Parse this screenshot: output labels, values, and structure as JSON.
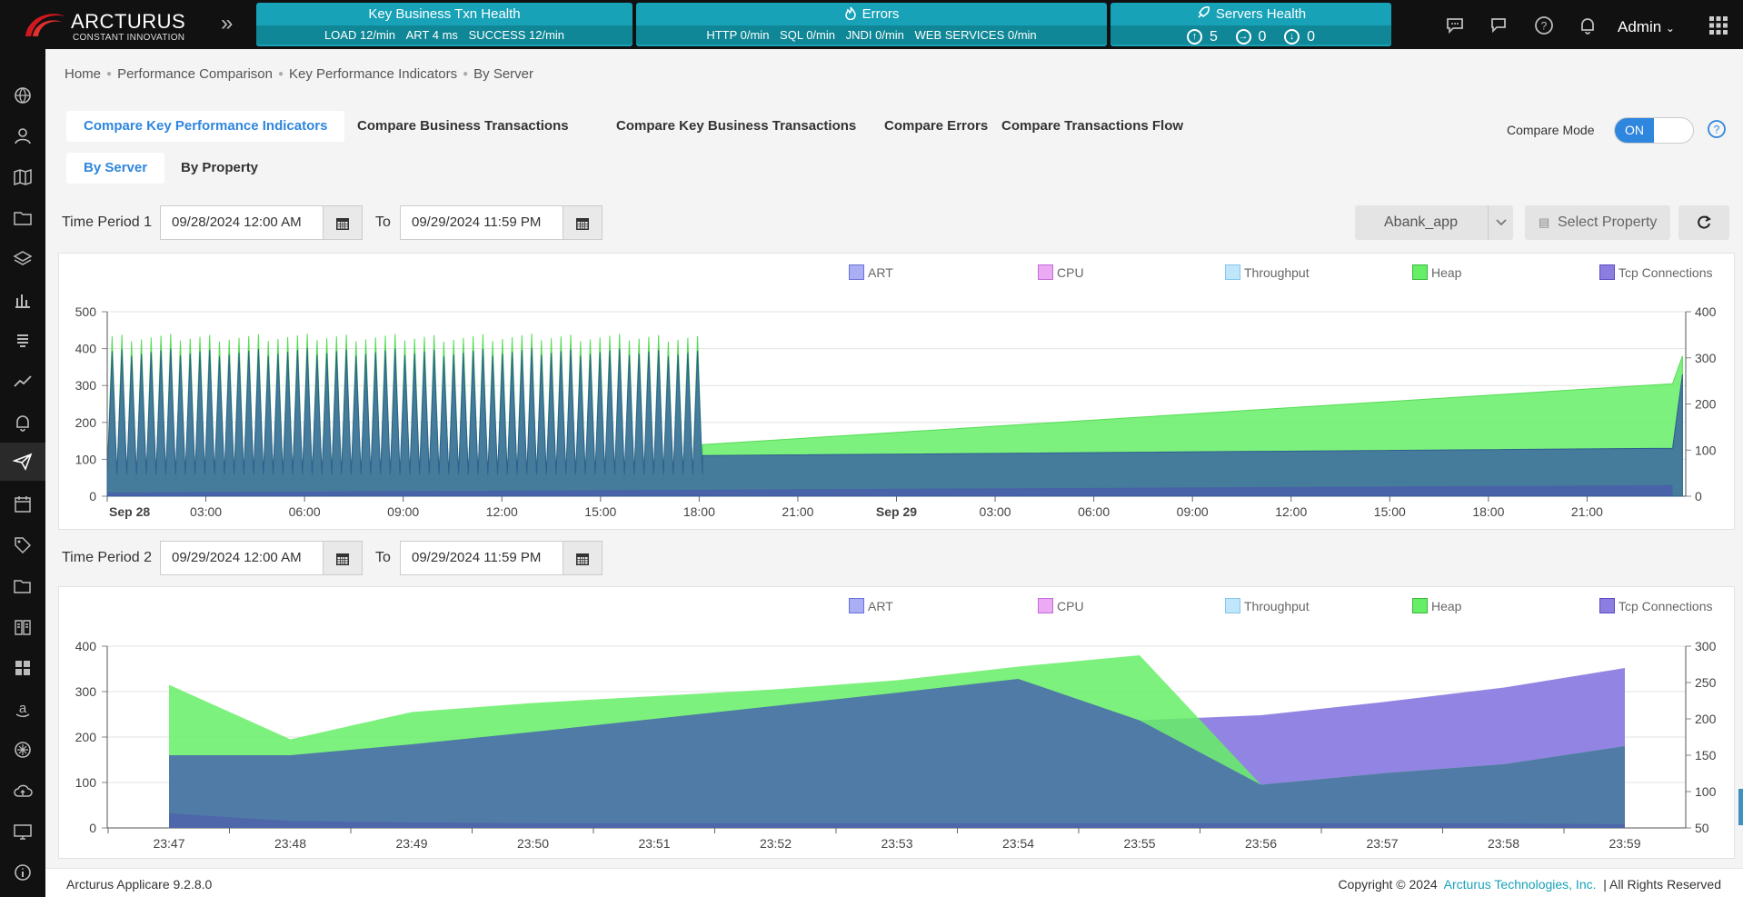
{
  "app": {
    "brand_name": "ARCTURUS",
    "brand_tagline": "CONSTANT INNOVATION",
    "user_name": "Admin",
    "version": "Arcturus Applicare 9.2.8.0",
    "copyright": "Copyright © 2024",
    "company": "Arcturus Technologies, Inc.",
    "rights": "|  All Rights Reserved"
  },
  "health_cards": {
    "key_txn": {
      "title": "Key Business Txn Health",
      "load": "LOAD 12/min",
      "art": "ART 4 ms",
      "success": "SUCCESS 12/min"
    },
    "errors": {
      "title": "Errors",
      "http": "HTTP 0/min",
      "sql": "SQL 0/min",
      "jndi": "JNDI 0/min",
      "ws": "WEB SERVICES 0/min"
    },
    "servers": {
      "title": "Servers Health",
      "up": "5",
      "neutral": "0",
      "down": "0"
    }
  },
  "breadcrumb": [
    "Home",
    "Performance Comparison",
    "Key Performance Indicators",
    "By Server"
  ],
  "tabs": [
    "Compare Key Performance Indicators",
    "Compare Business Transactions",
    "Compare Key Business Transactions",
    "Compare Errors",
    "Compare Transactions Flow"
  ],
  "subtabs": [
    "By Server",
    "By Property"
  ],
  "compare_mode": {
    "label": "Compare Mode",
    "state": "ON"
  },
  "period1": {
    "label": "Time Period 1",
    "from": "09/28/2024 12:00 AM",
    "to_label": "To",
    "to": "09/29/2024 11:59 PM"
  },
  "period2": {
    "label": "Time Period 2",
    "from": "09/29/2024 12:00 AM",
    "to_label": "To",
    "to": "09/29/2024 11:59 PM"
  },
  "server_select": {
    "value": "Abank_app"
  },
  "select_property": {
    "label": "Select Property"
  },
  "legend": [
    {
      "name": "ART",
      "color": "#a9aef5"
    },
    {
      "name": "CPU",
      "color": "#ecaaf5"
    },
    {
      "name": "Throughput",
      "color": "#bfe6fb"
    },
    {
      "name": "Heap",
      "color": "#66ee66"
    },
    {
      "name": "Tcp Connections",
      "color": "#8c7de0"
    }
  ],
  "chart_data": [
    {
      "type": "area",
      "x_tick_labels": [
        "Sep 28",
        "03:00",
        "06:00",
        "09:00",
        "12:00",
        "15:00",
        "18:00",
        "21:00",
        "Sep 29",
        "03:00",
        "06:00",
        "09:00",
        "12:00",
        "15:00",
        "18:00",
        "21:00"
      ],
      "x_range_hours": [
        0,
        48
      ],
      "y_left_ticks": [
        "0",
        "100",
        "200",
        "300",
        "400",
        "500"
      ],
      "y_left_range": [
        0,
        500
      ],
      "y_right_ticks": [
        "0",
        "100",
        "200",
        "300",
        "400"
      ],
      "y_right_range": [
        0,
        400
      ],
      "grid": true,
      "legend_position": "top-right",
      "series": [
        {
          "name": "Heap",
          "description": "oscillating 40-430 until ~18:00 Sep 28, then rising linearly",
          "x_hours": [
            18.1,
            47.6,
            47.9
          ],
          "values": [
            140,
            305,
            380
          ]
        },
        {
          "name": "Tcp Connections",
          "description": "oscillating until ~18:00 Sep 28, then flat rising",
          "x_hours": [
            18.1,
            47.6,
            47.9
          ],
          "values": [
            110,
            130,
            330
          ]
        },
        {
          "name": "ART",
          "x_hours": [
            0,
            47.6
          ],
          "values": [
            10,
            30
          ]
        }
      ],
      "oscillation": {
        "start_hour": 0,
        "end_hour": 18.1,
        "cycles": 61,
        "min": 40,
        "max": 430
      }
    },
    {
      "type": "area",
      "x_tick_labels": [
        "23:47",
        "23:48",
        "23:49",
        "23:50",
        "23:51",
        "23:52",
        "23:53",
        "23:54",
        "23:55",
        "23:56",
        "23:57",
        "23:58",
        "23:59"
      ],
      "x_range": [
        0,
        12
      ],
      "y_left_ticks": [
        "0",
        "100",
        "200",
        "300",
        "400"
      ],
      "y_left_range": [
        0,
        400
      ],
      "y_right_ticks": [
        "50",
        "100",
        "150",
        "200",
        "250",
        "300"
      ],
      "y_right_range": [
        50,
        300
      ],
      "grid": true,
      "legend_position": "top-right",
      "series": [
        {
          "name": "Heap",
          "axis": "left",
          "x": [
            0,
            1,
            2,
            3,
            4,
            5,
            6,
            7,
            8,
            9,
            10,
            11,
            12
          ],
          "values": [
            315,
            195,
            255,
            275,
            290,
            305,
            325,
            355,
            380,
            95,
            120,
            140,
            180
          ]
        },
        {
          "name": "Tcp Connections",
          "axis": "right",
          "x": [
            0,
            1,
            2,
            3,
            4,
            5,
            6,
            7,
            8,
            9,
            10,
            11,
            12
          ],
          "values": [
            150,
            150,
            165,
            182,
            200,
            218,
            236,
            255,
            198,
            205,
            223,
            243,
            270
          ]
        },
        {
          "name": "ART",
          "axis": "left",
          "x": [
            0,
            1,
            2,
            3,
            4,
            5,
            6,
            7,
            8,
            9,
            10,
            11,
            12
          ],
          "values": [
            32,
            15,
            12,
            10,
            10,
            10,
            10,
            10,
            10,
            10,
            10,
            10,
            8
          ]
        }
      ]
    }
  ]
}
